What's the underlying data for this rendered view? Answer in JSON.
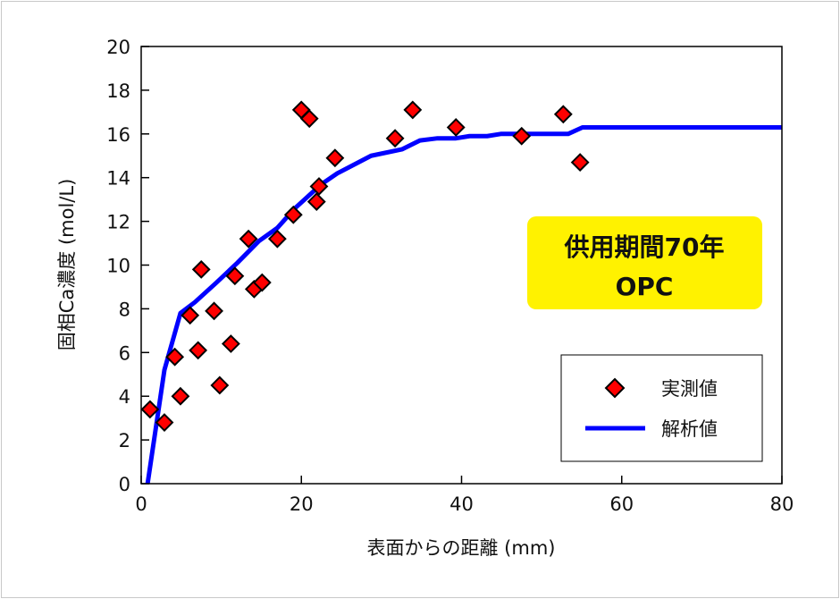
{
  "chart_data": {
    "type": "scatter",
    "xlabel": "表面からの距離 (mm)",
    "ylabel": "固相Ca濃度 (mol/L)",
    "xlim": [
      0,
      80
    ],
    "ylim": [
      0,
      20
    ],
    "xticks": [
      "0",
      "20",
      "40",
      "60",
      "80"
    ],
    "yticks": [
      "0",
      "2",
      "4",
      "6",
      "8",
      "10",
      "12",
      "14",
      "16",
      "18",
      "20"
    ],
    "grid": false,
    "legend_position": "bottom-right",
    "annotation": {
      "line1": "供用期間70年",
      "line2": "OPC",
      "background": "#fff200"
    },
    "series": [
      {
        "name": "実測値",
        "kind": "scatter",
        "marker": "diamond",
        "color": "#ff0000",
        "points": [
          [
            1.1,
            3.4
          ],
          [
            2.9,
            2.8
          ],
          [
            4.2,
            5.8
          ],
          [
            4.9,
            4.0
          ],
          [
            6.1,
            7.7
          ],
          [
            7.1,
            6.1
          ],
          [
            7.5,
            9.8
          ],
          [
            9.1,
            7.9
          ],
          [
            9.8,
            4.5
          ],
          [
            11.2,
            6.4
          ],
          [
            11.7,
            9.5
          ],
          [
            13.4,
            11.2
          ],
          [
            14.1,
            8.9
          ],
          [
            15.1,
            9.2
          ],
          [
            17.0,
            11.2
          ],
          [
            19.0,
            12.3
          ],
          [
            20.0,
            17.1
          ],
          [
            21.0,
            16.7
          ],
          [
            21.9,
            12.9
          ],
          [
            22.2,
            13.6
          ],
          [
            24.2,
            14.9
          ],
          [
            31.7,
            15.8
          ],
          [
            33.9,
            17.1
          ],
          [
            39.3,
            16.3
          ],
          [
            47.5,
            15.9
          ],
          [
            52.7,
            16.9
          ],
          [
            54.8,
            14.7
          ]
        ]
      },
      {
        "name": "解析値",
        "kind": "line",
        "color": "#0000ff",
        "points": [
          [
            0.8,
            0
          ],
          [
            2.9,
            5.2
          ],
          [
            4.9,
            7.8
          ],
          [
            6.7,
            8.3
          ],
          [
            9.4,
            9.2
          ],
          [
            12,
            10.1
          ],
          [
            14.7,
            11.1
          ],
          [
            17,
            11.7
          ],
          [
            19.2,
            12.6
          ],
          [
            22.5,
            13.7
          ],
          [
            24.5,
            14.2
          ],
          [
            28.7,
            15.0
          ],
          [
            32.6,
            15.3
          ],
          [
            34.8,
            15.7
          ],
          [
            37,
            15.8
          ],
          [
            39.3,
            15.8
          ],
          [
            41,
            15.9
          ],
          [
            43.2,
            15.9
          ],
          [
            44.9,
            16.0
          ],
          [
            53.3,
            16.0
          ],
          [
            55.1,
            16.3
          ],
          [
            80,
            16.3
          ]
        ]
      }
    ]
  }
}
